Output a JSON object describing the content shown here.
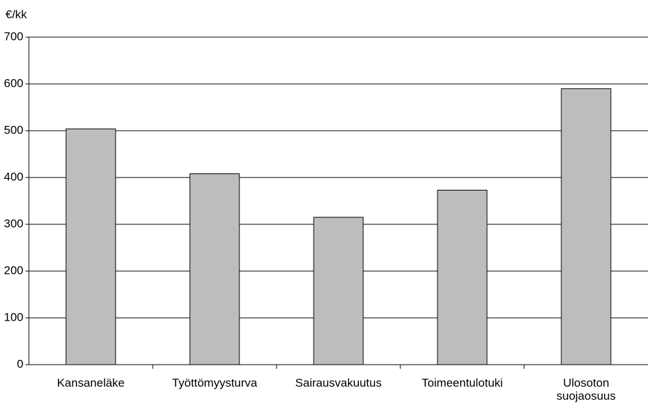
{
  "chart_data": {
    "type": "bar",
    "y_label": "€/kk",
    "categories": [
      "Kansaneläke",
      "Työttömyysturva",
      "Sairausvakuutus",
      "Toimeentulotuki",
      "Ulosoton suojaosuus"
    ],
    "values": [
      504,
      408,
      315,
      373,
      590
    ],
    "color": "#bdbdc0",
    "ylim": [
      0,
      700
    ],
    "yticks": [
      0,
      100,
      200,
      300,
      400,
      500,
      600,
      700
    ],
    "grid": true
  }
}
